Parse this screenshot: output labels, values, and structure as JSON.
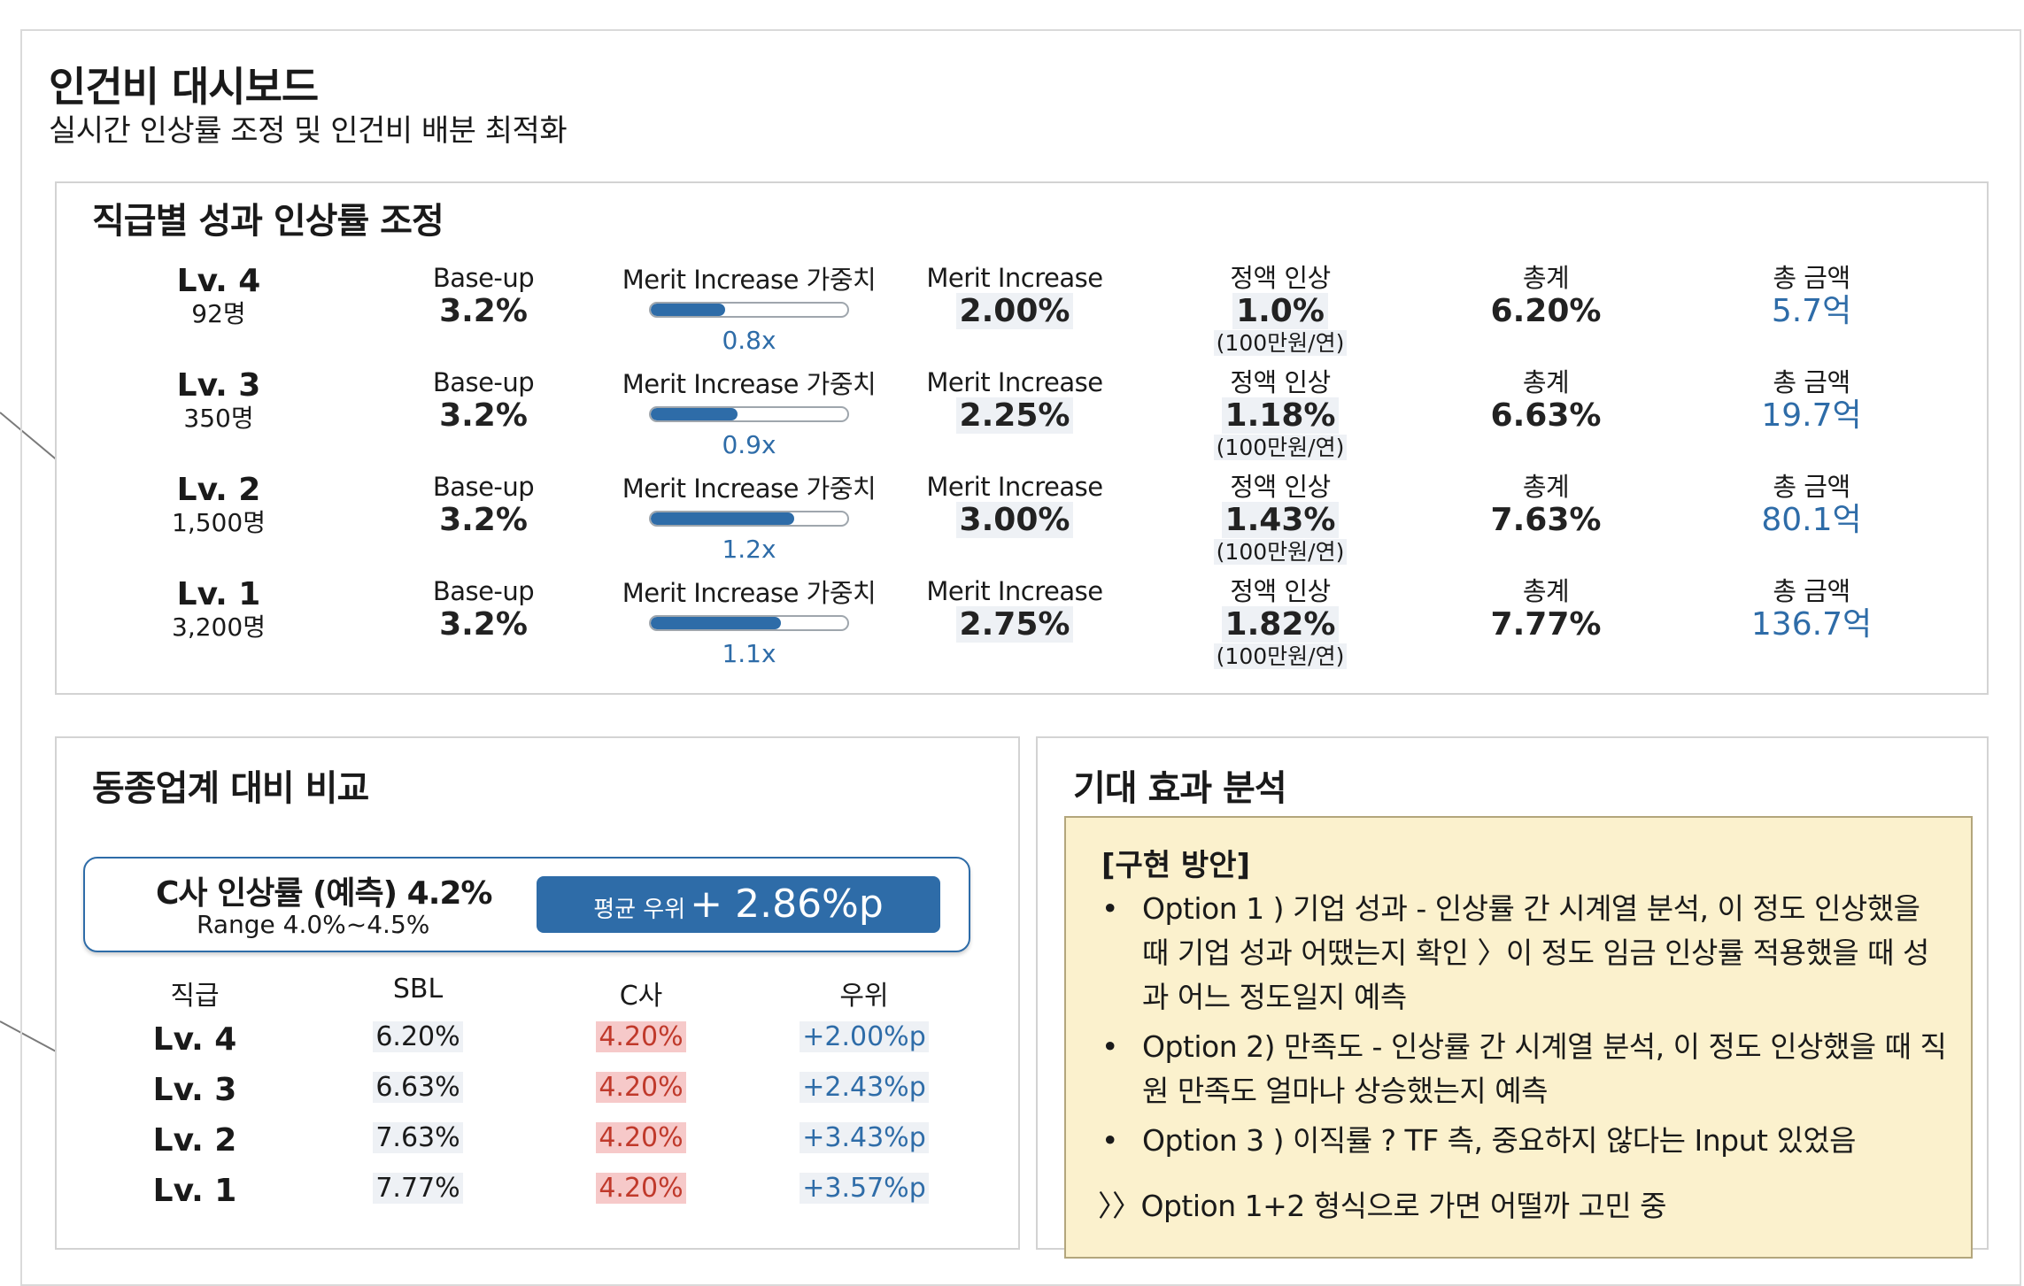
{
  "dashboard": {
    "title": "인건비 대시보드",
    "subtitle": "실시간 인상률 조정 및 인건비 배분 최적화"
  },
  "adjust_panel": {
    "title": "직급별 성과 인상률 조정",
    "rows": [
      {
        "level": "Lv. 4",
        "headcount": "92명",
        "base_label": "Base-up",
        "base_value": "3.2%",
        "weight_label": "Merit Increase 가중치",
        "weight_value": "0.8x",
        "weight_fill": 0.38,
        "merit_label": "Merit Increase",
        "merit_value": "2.00%",
        "fixed_label": "정액 인상",
        "fixed_value": "1.0%",
        "fixed_unit": "(100만원/연)",
        "total_label": "총계",
        "total_value": "6.20%",
        "amount_label": "총 금액",
        "amount_value": "5.7억"
      },
      {
        "level": "Lv. 3",
        "headcount": "350명",
        "base_label": "Base-up",
        "base_value": "3.2%",
        "weight_label": "Merit Increase 가중치",
        "weight_value": "0.9x",
        "weight_fill": 0.44,
        "merit_label": "Merit Increase",
        "merit_value": "2.25%",
        "fixed_label": "정액 인상",
        "fixed_value": "1.18%",
        "fixed_unit": "(100만원/연)",
        "total_label": "총계",
        "total_value": "6.63%",
        "amount_label": "총 금액",
        "amount_value": "19.7억"
      },
      {
        "level": "Lv. 2",
        "headcount": "1,500명",
        "base_label": "Base-up",
        "base_value": "3.2%",
        "weight_label": "Merit Increase 가중치",
        "weight_value": "1.2x",
        "weight_fill": 0.73,
        "merit_label": "Merit Increase",
        "merit_value": "3.00%",
        "fixed_label": "정액 인상",
        "fixed_value": "1.43%",
        "fixed_unit": "(100만원/연)",
        "total_label": "총계",
        "total_value": "7.63%",
        "amount_label": "총 금액",
        "amount_value": "80.1억"
      },
      {
        "level": "Lv. 1",
        "headcount": "3,200명",
        "base_label": "Base-up",
        "base_value": "3.2%",
        "weight_label": "Merit Increase 가중치",
        "weight_value": "1.1x",
        "weight_fill": 0.66,
        "merit_label": "Merit Increase",
        "merit_value": "2.75%",
        "fixed_label": "정액 인상",
        "fixed_value": "1.82%",
        "fixed_unit": "(100만원/연)",
        "total_label": "총계",
        "total_value": "7.77%",
        "amount_label": "총 금액",
        "amount_value": "136.7억"
      }
    ]
  },
  "peer_panel": {
    "title": "동종업계 대비 비교",
    "competitor_title": "C사 인상률 (예측) 4.2%",
    "competitor_range": "Range 4.0%~4.5%",
    "badge_small": "평균 우위",
    "badge_big": "+ 2.86%p",
    "headers": [
      "직급",
      "SBL",
      "C사",
      "우위"
    ],
    "rows": [
      {
        "level": "Lv. 4",
        "sbl": "6.20%",
        "comp": "4.20%",
        "diff": "+2.00%p"
      },
      {
        "level": "Lv. 3",
        "sbl": "6.63%",
        "comp": "4.20%",
        "diff": "+2.43%p"
      },
      {
        "level": "Lv. 2",
        "sbl": "7.63%",
        "comp": "4.20%",
        "diff": "+3.43%p"
      },
      {
        "level": "Lv. 1",
        "sbl": "7.77%",
        "comp": "4.20%",
        "diff": "+3.57%p"
      }
    ]
  },
  "effect_panel": {
    "title": "기대 효과 분석",
    "memo_heading": "[구현 방안]",
    "bullet_symbol": "•",
    "bullets": [
      "Option 1 ) 기업 성과  -  인상률 간 시계열 분석, 이 정도 인상했을 때 기업 성과 어땠는지 확인 〉이 정도 임금 인상률 적용했을 때 성과 어느 정도일지 예측",
      "Option 2) 만족도  -  인상률 간 시계열 분석, 이 정도 인상했을 때 직원 만족도 얼마나 상승했는지 예측",
      "Option 3 ) 이직률 ? TF 측, 중요하지 않다는 Input 있었음"
    ],
    "footer": "〉〉Option 1+2 형식으로 가면 어떨까 고민 중"
  },
  "colors": {
    "accent": "#2e6ca8",
    "negative_bg": "#f6c9c9",
    "memo_bg": "#fbf1cd",
    "panel_border": "#d3d3d3"
  }
}
